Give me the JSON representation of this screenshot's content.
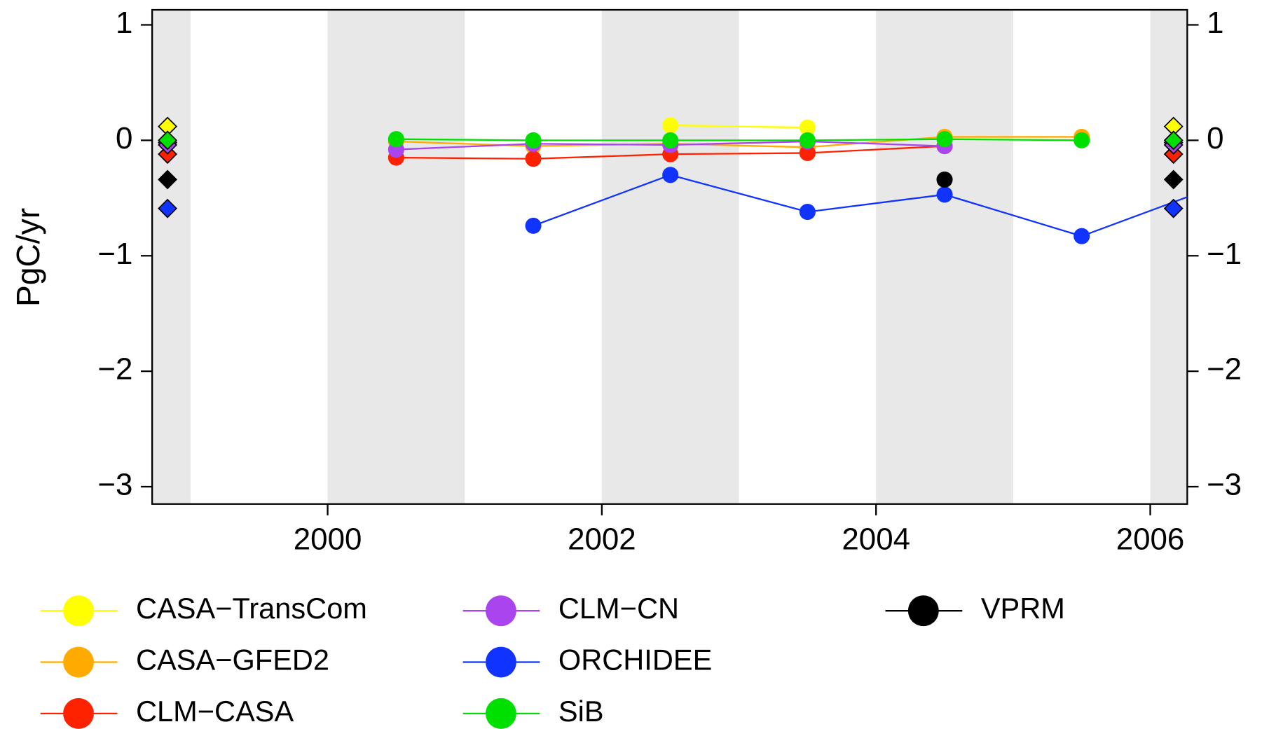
{
  "chart_data": {
    "type": "line",
    "y_label": "PgC/yr",
    "x": [
      2000.5,
      2001.5,
      2002.5,
      2003.5,
      2004.5,
      2005.5,
      2006.5
    ],
    "series": [
      {
        "name": "CASA−TransCom",
        "color": "#ffff00",
        "values": [
          null,
          null,
          0.13,
          0.11,
          null,
          null,
          null
        ],
        "mean": 0.12
      },
      {
        "name": "CASA−GFED2",
        "color": "#ffaa00",
        "values": [
          -0.01,
          -0.05,
          -0.03,
          -0.06,
          0.03,
          0.03,
          null
        ],
        "mean": -0.02
      },
      {
        "name": "CLM−CASA",
        "color": "#ff2200",
        "values": [
          -0.15,
          -0.16,
          -0.12,
          -0.11,
          -0.05,
          null,
          null
        ],
        "mean": -0.12
      },
      {
        "name": "CLM−CN",
        "color": "#aa44ee",
        "values": [
          -0.08,
          -0.03,
          -0.04,
          -0.01,
          -0.05,
          null,
          null
        ],
        "mean": -0.04
      },
      {
        "name": "ORCHIDEE",
        "color": "#1133ff",
        "values": [
          null,
          -0.74,
          -0.3,
          -0.62,
          -0.47,
          -0.83,
          -0.39
        ],
        "mean": -0.59
      },
      {
        "name": "SiB",
        "color": "#00e000",
        "values": [
          0.01,
          0.0,
          0.0,
          0.0,
          0.01,
          0.0,
          null
        ],
        "mean": 0.0
      },
      {
        "name": "VPRM",
        "color": "#000000",
        "values": [
          null,
          null,
          null,
          null,
          -0.34,
          null,
          null
        ],
        "mean": -0.34
      }
    ],
    "xlim": [
      1998.72,
      2006.27
    ],
    "xticks": [
      2000,
      2002,
      2004,
      2006
    ],
    "ylim": [
      -3.15,
      1.13
    ],
    "yticks": [
      1,
      0,
      {
        "value": -1,
        "label": "−1"
      },
      {
        "value": -2,
        "label": "−2"
      },
      {
        "value": -3,
        "label": "−3"
      }
    ]
  }
}
